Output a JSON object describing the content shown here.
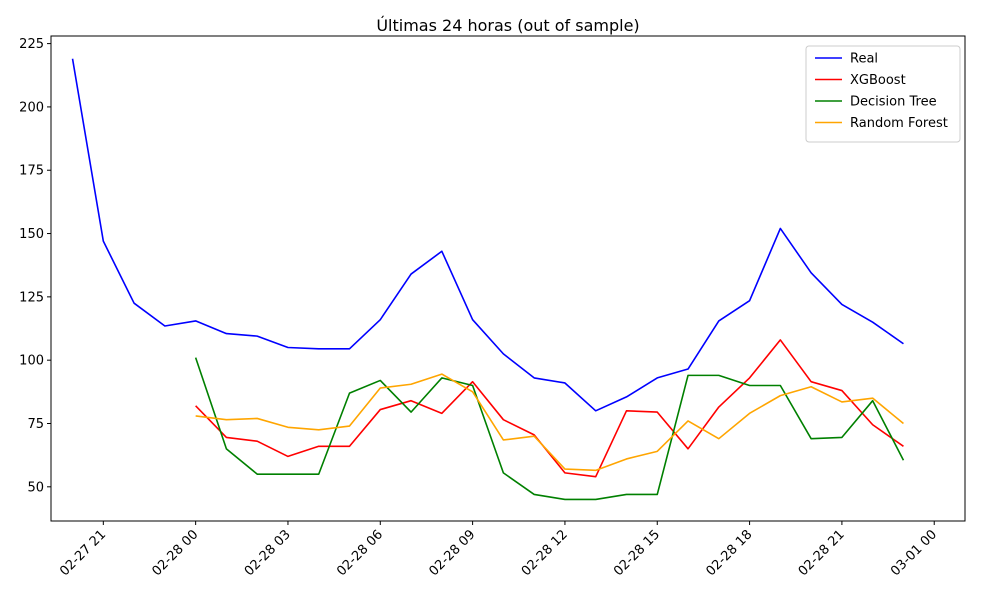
{
  "chart_data": {
    "type": "line",
    "title": "Últimas 24 horas (out of sample)",
    "xlabel": "",
    "ylabel": "",
    "x_range_hours": [
      -4.7,
      25
    ],
    "ylim": [
      36.5,
      228
    ],
    "grid": false,
    "legend_placement": "top-right",
    "x_ticks": [
      {
        "hour": -3,
        "label": "02-27 21"
      },
      {
        "hour": 0,
        "label": "02-28 00"
      },
      {
        "hour": 3,
        "label": "02-28 03"
      },
      {
        "hour": 6,
        "label": "02-28 06"
      },
      {
        "hour": 9,
        "label": "02-28 09"
      },
      {
        "hour": 12,
        "label": "02-28 12"
      },
      {
        "hour": 15,
        "label": "02-28 15"
      },
      {
        "hour": 18,
        "label": "02-28 18"
      },
      {
        "hour": 21,
        "label": "02-28 21"
      },
      {
        "hour": 24,
        "label": "03-01 00"
      }
    ],
    "y_ticks": [
      50,
      75,
      100,
      125,
      150,
      175,
      200,
      225
    ],
    "series": [
      {
        "name": "Real",
        "color": "#0000ff",
        "start_hour": -4,
        "values": [
          219,
          147,
          122.5,
          113.5,
          115.5,
          110.5,
          109.5,
          105,
          104.5,
          104.5,
          116,
          134,
          143,
          116,
          102.5,
          93,
          91,
          80,
          85.5,
          93,
          96.5,
          115.5,
          123.5,
          152,
          134.5,
          122,
          115,
          106.5
        ]
      },
      {
        "name": "XGBoost",
        "color": "#ff0000",
        "start_hour": 0,
        "values": [
          82,
          69.5,
          68,
          62,
          66,
          66,
          80.5,
          84,
          79,
          91.5,
          76.5,
          70.5,
          55.5,
          54,
          80,
          79.5,
          65,
          81.5,
          93,
          108,
          91.5,
          88,
          74.5,
          66
        ]
      },
      {
        "name": "Decision Tree",
        "color": "#008000",
        "start_hour": 0,
        "values": [
          101,
          65,
          55,
          55,
          55,
          87,
          92,
          79.5,
          93,
          90,
          55.5,
          47,
          45,
          45,
          47,
          47,
          94,
          94,
          90,
          90,
          69,
          69.5,
          84,
          60.5
        ]
      },
      {
        "name": "Random Forest",
        "color": "#ffa500",
        "start_hour": 0,
        "values": [
          78,
          76.5,
          77,
          73.5,
          72.5,
          74,
          89,
          90.5,
          94.5,
          87.5,
          68.5,
          70,
          57,
          56.5,
          61,
          64,
          76,
          69,
          79,
          86,
          89.5,
          83.5,
          85,
          75
        ]
      }
    ]
  }
}
